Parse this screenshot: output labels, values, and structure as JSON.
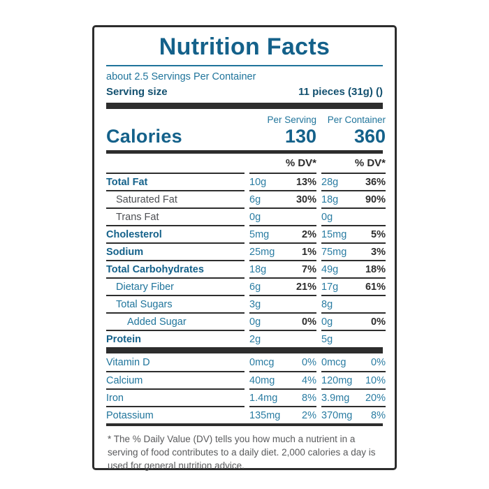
{
  "label": {
    "title": "Nutrition Facts",
    "servings_per_container": "about 2.5 Servings Per Container",
    "serving_size_label": "Serving size",
    "serving_size_value": "11 pieces (31g) ()",
    "calories": {
      "label": "Calories",
      "per_serving_header": "Per Serving",
      "per_container_header": "Per Container",
      "per_serving_value": "130",
      "per_container_value": "360"
    },
    "dv_header": "% DV*",
    "rows": [
      {
        "name": "Total Fat",
        "style": "bold",
        "indent": 0,
        "serving_amount": "10g",
        "serving_dv": "13%",
        "container_amount": "28g",
        "container_dv": "36%"
      },
      {
        "name": "Saturated Fat",
        "style": "gray",
        "indent": 1,
        "serving_amount": "6g",
        "serving_dv": "30%",
        "container_amount": "18g",
        "container_dv": "90%"
      },
      {
        "name": "Trans Fat",
        "style": "gray",
        "indent": 1,
        "serving_amount": "0g",
        "serving_dv": "",
        "container_amount": "0g",
        "container_dv": ""
      },
      {
        "name": "Cholesterol",
        "style": "bold",
        "indent": 0,
        "serving_amount": "5mg",
        "serving_dv": "2%",
        "container_amount": "15mg",
        "container_dv": "5%"
      },
      {
        "name": "Sodium",
        "style": "bold",
        "indent": 0,
        "serving_amount": "25mg",
        "serving_dv": "1%",
        "container_amount": "75mg",
        "container_dv": "3%"
      },
      {
        "name": "Total Carbohydrates",
        "style": "bold",
        "indent": 0,
        "serving_amount": "18g",
        "serving_dv": "7%",
        "container_amount": "49g",
        "container_dv": "18%"
      },
      {
        "name": "Dietary Fiber",
        "style": "teal",
        "indent": 1,
        "serving_amount": "6g",
        "serving_dv": "21%",
        "container_amount": "17g",
        "container_dv": "61%"
      },
      {
        "name": "Total Sugars",
        "style": "teal",
        "indent": 1,
        "serving_amount": "3g",
        "serving_dv": "",
        "container_amount": "8g",
        "container_dv": ""
      },
      {
        "name": "Added Sugar",
        "style": "teal",
        "indent": 2,
        "serving_amount": "0g",
        "serving_dv": "0%",
        "container_amount": "0g",
        "container_dv": "0%"
      },
      {
        "name": "Protein",
        "style": "bold",
        "indent": 0,
        "serving_amount": "2g",
        "serving_dv": "",
        "container_amount": "5g",
        "container_dv": ""
      }
    ],
    "micronutrients": [
      {
        "name": "Vitamin D",
        "serving_amount": "0mcg",
        "serving_dv": "0%",
        "container_amount": "0mcg",
        "container_dv": "0%"
      },
      {
        "name": "Calcium",
        "serving_amount": "40mg",
        "serving_dv": "4%",
        "container_amount": "120mg",
        "container_dv": "10%"
      },
      {
        "name": "Iron",
        "serving_amount": "1.4mg",
        "serving_dv": "8%",
        "container_amount": "3.9mg",
        "container_dv": "20%"
      },
      {
        "name": "Potassium",
        "serving_amount": "135mg",
        "serving_dv": "2%",
        "container_amount": "370mg",
        "container_dv": "8%"
      }
    ],
    "footnote": "* The % Daily Value (DV) tells you how much a nutrient in a serving of food contributes to a daily diet. 2,000 calories a day is used for general nutrition advice."
  },
  "colors": {
    "brand_teal_bold": "#14618a",
    "teal_regular": "#1f749b",
    "amount_teal": "#2a7ca2",
    "dark_line": "#2d2d2d",
    "gray_name": "#4d4f53",
    "footnote_gray": "#595a5c"
  }
}
